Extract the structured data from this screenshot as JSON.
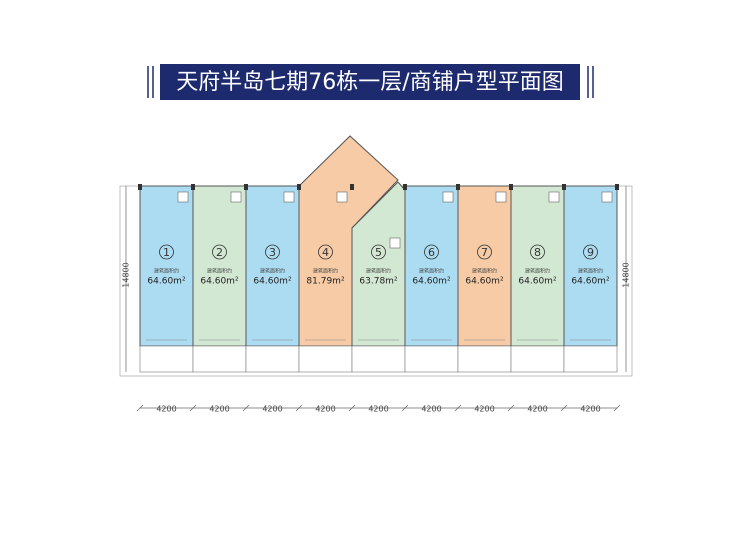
{
  "header": {
    "title": "天府半岛七期76栋一层/商铺户型平面图"
  },
  "units": [
    {
      "number": "1",
      "area_label": "建筑面积约",
      "area": "64.60m²",
      "color": "#acdcf2"
    },
    {
      "number": "2",
      "area_label": "建筑面积约",
      "area": "64.60m²",
      "color": "#d2e8d2"
    },
    {
      "number": "3",
      "area_label": "建筑面积约",
      "area": "64.60m²",
      "color": "#acdcf2"
    },
    {
      "number": "4",
      "area_label": "建筑面积约",
      "area": "81.79m²",
      "color": "#f6cba6"
    },
    {
      "number": "5",
      "area_label": "建筑面积约",
      "area": "63.78m²",
      "color": "#d2e8d2"
    },
    {
      "number": "6",
      "area_label": "建筑面积约",
      "area": "64.60m²",
      "color": "#acdcf2"
    },
    {
      "number": "7",
      "area_label": "建筑面积约",
      "area": "64.60m²",
      "color": "#f6cba6"
    },
    {
      "number": "8",
      "area_label": "建筑面积约",
      "area": "64.60m²",
      "color": "#d2e8d2"
    },
    {
      "number": "9",
      "area_label": "建筑面积约",
      "area": "64.60m²",
      "color": "#acdcf2"
    }
  ],
  "dimensions": {
    "widths": [
      "4200",
      "4200",
      "4200",
      "4200",
      "4200",
      "4200",
      "4200",
      "4200",
      "4200"
    ],
    "heights": [
      "14800",
      "14800"
    ]
  }
}
